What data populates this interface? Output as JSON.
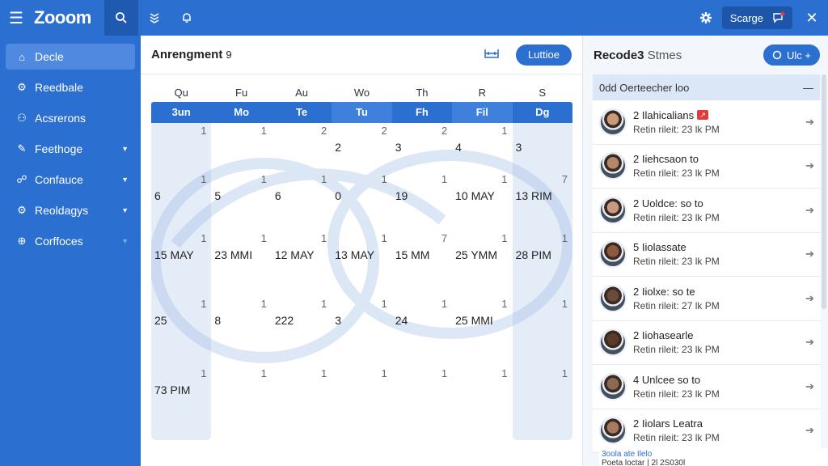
{
  "app": {
    "brand": "Zooom"
  },
  "topbar": {
    "user_label": "Scarge",
    "icons": [
      "menu-icon",
      "search-icon",
      "layers-icon",
      "bell-icon",
      "settings-gear-icon",
      "chat-bubble-icon",
      "close-icon"
    ]
  },
  "sidebar": {
    "items": [
      {
        "label": "Decle",
        "icon": "home-icon",
        "active": true,
        "chevron": false
      },
      {
        "label": "Reedbale",
        "icon": "gear-icon",
        "active": false,
        "chevron": false
      },
      {
        "label": "Acsrerons",
        "icon": "people-icon",
        "active": false,
        "chevron": false
      },
      {
        "label": "Feethoge",
        "icon": "edit-icon",
        "active": false,
        "chevron": true
      },
      {
        "label": "Confauce",
        "icon": "group-icon",
        "active": false,
        "chevron": true
      },
      {
        "label": "Reoldagys",
        "icon": "gear-icon",
        "active": false,
        "chevron": true
      },
      {
        "label": "Corffoces",
        "icon": "globe-icon",
        "active": false,
        "chevron": true
      }
    ]
  },
  "calendar": {
    "title": "Anrengment",
    "title_suffix": "9",
    "action_label": "Luttioe",
    "dow": [
      "Qu",
      "Fu",
      "Au",
      "Wo",
      "Th",
      "R",
      "S"
    ],
    "days": [
      "3un",
      "Mo",
      "Te",
      "Tu",
      "Fh",
      "Fil",
      "Dg"
    ],
    "weeks": [
      [
        {
          "big": "",
          "small": "1"
        },
        {
          "big": "",
          "small": "1"
        },
        {
          "big": "",
          "small": "2"
        },
        {
          "big": "2",
          "small": "2"
        },
        {
          "big": "3",
          "small": "2"
        },
        {
          "big": "4",
          "small": "1"
        },
        {
          "big": "3",
          "small": ""
        }
      ],
      [
        {
          "big": "6",
          "small": "1"
        },
        {
          "big": "5",
          "small": "1"
        },
        {
          "big": "6",
          "small": "1"
        },
        {
          "big": "0",
          "small": "1"
        },
        {
          "big": "19",
          "small": "1"
        },
        {
          "big": "10 MAY",
          "small": "1"
        },
        {
          "big": "13 RIM",
          "small": "7"
        }
      ],
      [
        {
          "big": "15 MAY",
          "small": "1"
        },
        {
          "big": "23 MMI",
          "small": "1"
        },
        {
          "big": "12 MAY",
          "small": "1"
        },
        {
          "big": "13 MAY",
          "small": "1"
        },
        {
          "big": "15 MM",
          "small": "7"
        },
        {
          "big": "25 YMM",
          "small": "1"
        },
        {
          "big": "28 PIM",
          "small": "1"
        }
      ],
      [
        {
          "big": "25",
          "small": "1"
        },
        {
          "big": "8",
          "small": "1"
        },
        {
          "big": "222",
          "small": "1"
        },
        {
          "big": "3",
          "small": "1"
        },
        {
          "big": "24",
          "small": "1"
        },
        {
          "big": "25 MMI",
          "small": "1"
        },
        {
          "big": "",
          "small": "1"
        }
      ],
      [
        {
          "big": "73 PIM",
          "small": "1"
        },
        {
          "big": "",
          "small": "1"
        },
        {
          "big": "",
          "small": "1"
        },
        {
          "big": "",
          "small": "1"
        },
        {
          "big": "",
          "small": "1"
        },
        {
          "big": "",
          "small": "1"
        },
        {
          "big": "",
          "small": "1"
        }
      ]
    ]
  },
  "panel": {
    "title": "Recode3",
    "title_suffix": "Stmes",
    "button_label": "Ulc +",
    "group_label": "0dd Oerteecher loo",
    "items": [
      {
        "name": "2 Ilahicalians",
        "sub": "Retin rileit: 23 lk PM",
        "flag": true,
        "avatar": "#c89a7a"
      },
      {
        "name": "2 Iiehcsaon to",
        "sub": "Retin rileit: 23 lk PM",
        "flag": false,
        "avatar": "#b5876a"
      },
      {
        "name": "2 Uoldce: so to",
        "sub": "Retin rileit: 23 lk PM",
        "flag": false,
        "avatar": "#c79b82"
      },
      {
        "name": "5 Iiolassate",
        "sub": "Retin rileit: 23 lk PM",
        "flag": false,
        "avatar": "#8d5a3f"
      },
      {
        "name": "2 Iiolxe: so te",
        "sub": "Retin rileit: 27 lk PM",
        "flag": false,
        "avatar": "#6b4a3a"
      },
      {
        "name": "2 Iiohasearle",
        "sub": "Retin rileit: 23 lk PM",
        "flag": false,
        "avatar": "#5a3b2b"
      },
      {
        "name": "4 Unlcee so to",
        "sub": "Retin rileit: 23 lk PM",
        "flag": false,
        "avatar": "#8b6a55"
      },
      {
        "name": "2 Iiolars Leatra",
        "sub": "Retin rileit: 23 lk PM",
        "flag": false,
        "avatar": "#a67b62"
      }
    ],
    "footnote_line1": "3oola ate Ilelo",
    "footnote_line2": "Poeta loctar | 2l 2S030l"
  },
  "colors": {
    "primary": "#2b6fd1",
    "sidebar_active": "#4f8ae0",
    "flag": "#e23b3b"
  }
}
